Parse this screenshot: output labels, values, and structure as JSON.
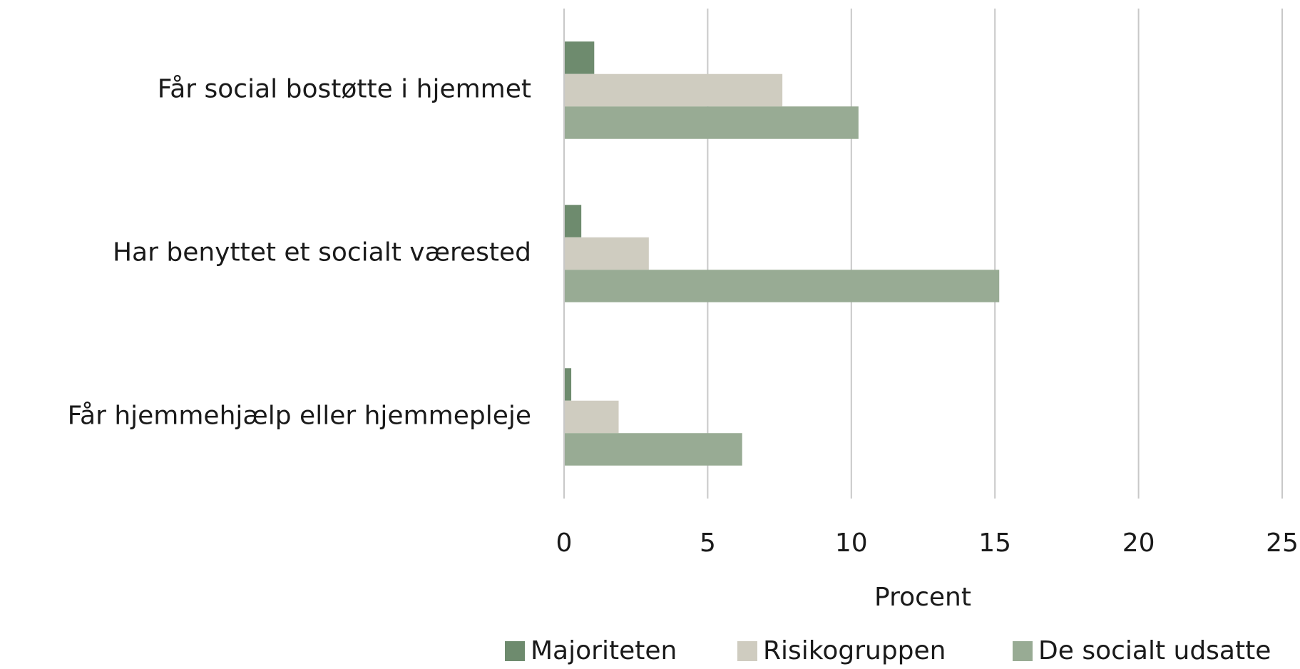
{
  "chart_data": {
    "type": "bar",
    "orientation": "horizontal",
    "x_label": "Procent",
    "categories": [
      "Får social bostøtte i hjemmet",
      "Har benyttet et socialt værested",
      "Får hjemmehjælp eller hjemmepleje"
    ],
    "series": [
      {
        "name": "Majoriteten",
        "color": "#6e8b6e",
        "values": [
          1.05,
          0.6,
          0.25
        ]
      },
      {
        "name": "Risikogruppen",
        "color": "#cfccc0",
        "values": [
          7.6,
          2.95,
          1.9
        ]
      },
      {
        "name": "De socialt udsatte",
        "color": "#98ab94",
        "values": [
          10.25,
          15.15,
          6.2
        ]
      }
    ],
    "xlim": [
      0,
      25
    ],
    "xticks": [
      0,
      5,
      10,
      15,
      20,
      25
    ],
    "grid": true,
    "legend": "bottom"
  }
}
